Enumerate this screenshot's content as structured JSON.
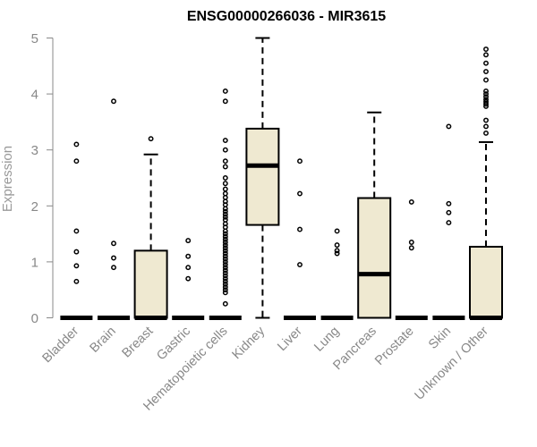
{
  "chart_data": {
    "type": "boxplot",
    "title": "ENSG00000266036 - MIR3615",
    "xlabel": "",
    "ylabel": "Expression",
    "ylim": [
      0,
      5
    ],
    "yticks": [
      0,
      1,
      2,
      3,
      4,
      5
    ],
    "grid": false,
    "legend": "none",
    "box_color": "#efe9d1",
    "categories": [
      "Bladder",
      "Brain",
      "Breast",
      "Gastric",
      "Hematopoietic cells",
      "Kidney",
      "Liver",
      "Lung",
      "Pancreas",
      "Prostate",
      "Skin",
      "Unknown / Other"
    ],
    "boxes": [
      {
        "whisker_low": 0,
        "q1": 0,
        "median": 0,
        "q3": 0,
        "whisker_high": 0,
        "outliers": [
          0.65,
          0.93,
          1.18,
          1.55,
          2.8,
          3.1
        ]
      },
      {
        "whisker_low": 0,
        "q1": 0,
        "median": 0,
        "q3": 0,
        "whisker_high": 0,
        "outliers": [
          0.9,
          1.07,
          1.33,
          3.87
        ]
      },
      {
        "whisker_low": 0,
        "q1": 0,
        "median": 0,
        "q3": 1.2,
        "whisker_high": 2.92,
        "outliers": [
          3.2
        ]
      },
      {
        "whisker_low": 0,
        "q1": 0,
        "median": 0,
        "q3": 0,
        "whisker_high": 0,
        "outliers": [
          0.7,
          0.9,
          1.1,
          1.38
        ]
      },
      {
        "whisker_low": 0,
        "q1": 0,
        "median": 0,
        "q3": 0,
        "whisker_high": 0,
        "outliers": [
          0.25,
          0.45,
          0.5,
          0.55,
          0.6,
          0.65,
          0.7,
          0.75,
          0.8,
          0.85,
          0.9,
          0.95,
          1.0,
          1.05,
          1.1,
          1.15,
          1.2,
          1.25,
          1.3,
          1.35,
          1.4,
          1.45,
          1.5,
          1.55,
          1.62,
          1.68,
          1.75,
          1.8,
          1.85,
          1.9,
          1.95,
          2.02,
          2.08,
          2.15,
          2.22,
          2.3,
          2.4,
          2.5,
          2.7,
          2.8,
          3.0,
          3.17,
          3.87,
          4.05
        ]
      },
      {
        "whisker_low": 0,
        "q1": 1.66,
        "median": 2.72,
        "q3": 3.38,
        "whisker_high": 5.0,
        "outliers": []
      },
      {
        "whisker_low": 0,
        "q1": 0,
        "median": 0,
        "q3": 0,
        "whisker_high": 0,
        "outliers": [
          0.95,
          1.58,
          2.22,
          2.8
        ]
      },
      {
        "whisker_low": 0,
        "q1": 0,
        "median": 0,
        "q3": 0,
        "whisker_high": 0,
        "outliers": [
          1.15,
          1.2,
          1.3,
          1.55
        ]
      },
      {
        "whisker_low": 0,
        "q1": 0,
        "median": 0.78,
        "q3": 2.14,
        "whisker_high": 3.67,
        "outliers": []
      },
      {
        "whisker_low": 0,
        "q1": 0,
        "median": 0,
        "q3": 0,
        "whisker_high": 0,
        "outliers": [
          1.25,
          1.35,
          2.07
        ]
      },
      {
        "whisker_low": 0,
        "q1": 0,
        "median": 0,
        "q3": 0,
        "whisker_high": 0,
        "outliers": [
          1.7,
          1.88,
          2.04,
          3.42
        ]
      },
      {
        "whisker_low": 0,
        "q1": 0,
        "median": 0,
        "q3": 1.27,
        "whisker_high": 3.14,
        "outliers": [
          3.3,
          3.42,
          3.53,
          3.78,
          3.82,
          3.86,
          3.9,
          3.95,
          4.0,
          4.05,
          4.25,
          4.4,
          4.55,
          4.7,
          4.8
        ]
      }
    ]
  }
}
